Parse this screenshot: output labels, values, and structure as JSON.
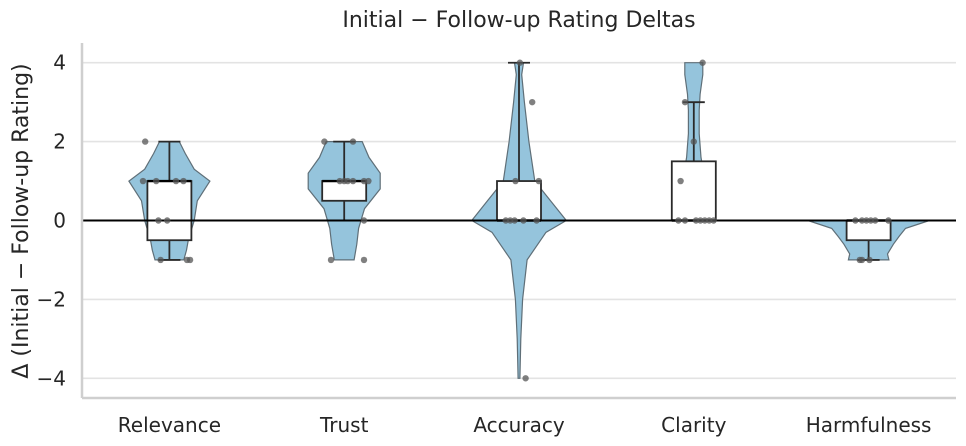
{
  "chart_data": {
    "type": "violin",
    "title": "Initial − Follow-up Rating Deltas",
    "ylabel": "Δ (Initial − Follow-up Rating)",
    "xlabel": "",
    "ylim": [
      -4.5,
      4.5
    ],
    "yticks": [
      4,
      2,
      0,
      -2,
      -4
    ],
    "ytick_labels": [
      "4",
      "2",
      "0",
      "−2",
      "−4"
    ],
    "zero_line": true,
    "grid": "horizontal",
    "colors": {
      "violin": "#95c4dc",
      "box": "#ffffff",
      "points": "#555555"
    },
    "categories": [
      {
        "name": "Relevance",
        "box": {
          "q1": -0.5,
          "median": 1,
          "q3": 1,
          "whisker_low": -1,
          "whisker_high": 2
        },
        "violin": [
          [
            -1,
            0.32
          ],
          [
            -0.75,
            0.38
          ],
          [
            -0.5,
            0.42
          ],
          [
            0,
            0.55
          ],
          [
            0.5,
            0.62
          ],
          [
            1,
            0.9
          ],
          [
            1.3,
            0.55
          ],
          [
            1.7,
            0.35
          ],
          [
            2,
            0.22
          ]
        ],
        "points": [
          [
            2,
            -0.55
          ],
          [
            1,
            -0.6
          ],
          [
            1,
            -0.3
          ],
          [
            1,
            0.32
          ],
          [
            1,
            0.15
          ],
          [
            0,
            -0.25
          ],
          [
            0,
            -0.05
          ],
          [
            -1,
            -0.2
          ],
          [
            -1,
            0.4
          ],
          [
            -1,
            0.47
          ]
        ]
      },
      {
        "name": "Trust",
        "box": {
          "q1": 0.5,
          "median": 1,
          "q3": 1,
          "whisker_low": 0,
          "whisker_high": 2
        },
        "violin": [
          [
            -1,
            0.22
          ],
          [
            -0.6,
            0.28
          ],
          [
            -0.2,
            0.32
          ],
          [
            0.3,
            0.45
          ],
          [
            0.8,
            0.8
          ],
          [
            1.2,
            0.8
          ],
          [
            1.6,
            0.55
          ],
          [
            2,
            0.4
          ]
        ],
        "points": [
          [
            2,
            -0.45
          ],
          [
            2,
            0.2
          ],
          [
            1,
            -0.1
          ],
          [
            1,
            0.0
          ],
          [
            1,
            0.08
          ],
          [
            1,
            0.2
          ],
          [
            1,
            0.45
          ],
          [
            1,
            0.55
          ],
          [
            0,
            0.45
          ],
          [
            -1,
            -0.3
          ],
          [
            -1,
            0.45
          ]
        ]
      },
      {
        "name": "Accuracy",
        "box": {
          "q1": 0,
          "median": 0,
          "q3": 1,
          "whisker_low": 0,
          "whisker_high": 4
        },
        "violin": [
          [
            -4,
            0.02
          ],
          [
            -3,
            0.04
          ],
          [
            -2,
            0.08
          ],
          [
            -1,
            0.18
          ],
          [
            -0.3,
            0.6
          ],
          [
            0,
            1.05
          ],
          [
            0.5,
            0.7
          ],
          [
            1,
            0.35
          ],
          [
            2,
            0.22
          ],
          [
            3,
            0.12
          ],
          [
            3.7,
            0.06
          ],
          [
            4,
            0.1
          ]
        ],
        "points": [
          [
            4,
            0.02
          ],
          [
            3,
            0.3
          ],
          [
            1,
            -0.08
          ],
          [
            1,
            0.45
          ],
          [
            0,
            -0.3
          ],
          [
            0,
            -0.2
          ],
          [
            0,
            -0.1
          ],
          [
            0,
            0.1
          ],
          [
            0,
            0.4
          ],
          [
            -4,
            0.15
          ]
        ]
      },
      {
        "name": "Clarity",
        "box": {
          "q1": 0,
          "median": 0,
          "q3": 1.5,
          "whisker_low": 0,
          "whisker_high": 3
        },
        "violin": [
          [
            0,
            0.42
          ],
          [
            0.4,
            0.38
          ],
          [
            0.8,
            0.3
          ],
          [
            1.2,
            0.22
          ],
          [
            1.6,
            0.16
          ],
          [
            2.2,
            0.12
          ],
          [
            2.8,
            0.12
          ],
          [
            3.2,
            0.14
          ],
          [
            3.7,
            0.2
          ],
          [
            4,
            0.2
          ]
        ],
        "points": [
          [
            4,
            0.2
          ],
          [
            3,
            -0.2
          ],
          [
            2,
            0.0
          ],
          [
            1,
            -0.3
          ],
          [
            0,
            -0.35
          ],
          [
            0,
            -0.2
          ],
          [
            0,
            0.05
          ],
          [
            0,
            0.15
          ],
          [
            0,
            0.25
          ],
          [
            0,
            0.35
          ],
          [
            0,
            0.45
          ]
        ]
      },
      {
        "name": "Harmfulness",
        "box": {
          "q1": -0.5,
          "median": 0,
          "q3": 0,
          "whisker_low": -1,
          "whisker_high": 0
        },
        "violin": [
          [
            -1,
            0.45
          ],
          [
            -0.85,
            0.42
          ],
          [
            -0.6,
            0.55
          ],
          [
            -0.4,
            0.68
          ],
          [
            -0.2,
            0.82
          ],
          [
            0,
            1.35
          ]
        ],
        "points": [
          [
            0,
            -0.3
          ],
          [
            0,
            -0.15
          ],
          [
            0,
            -0.05
          ],
          [
            0,
            0.05
          ],
          [
            0,
            0.15
          ],
          [
            0,
            0.45
          ],
          [
            -1,
            -0.2
          ],
          [
            -1,
            -0.15
          ],
          [
            -1,
            0.02
          ]
        ]
      }
    ]
  }
}
